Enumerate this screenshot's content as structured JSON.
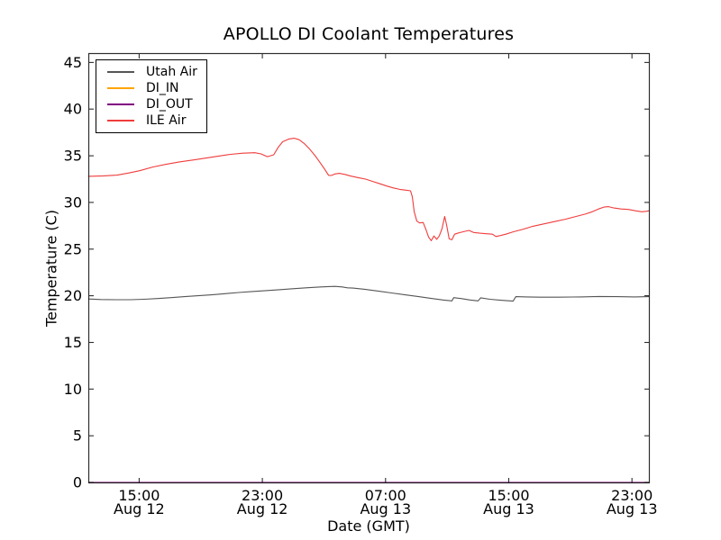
{
  "figure": {
    "background": "#ffffff",
    "axis_color": "#000000"
  },
  "chart_data": {
    "type": "line",
    "title": "APOLLO DI Coolant Temperatures",
    "xlabel": "Date (GMT)",
    "ylabel": "Temperature (C)",
    "x_axis_unit": "hours since Aug 12 00:00 GMT",
    "xlim_hours": [
      11.7,
      48.1
    ],
    "ylim": [
      0,
      46
    ],
    "y_ticks": [
      0,
      5,
      10,
      15,
      20,
      25,
      30,
      35,
      40,
      45
    ],
    "x_ticks": [
      {
        "hour": 15,
        "label_time": "15:00",
        "label_date": "Aug 12"
      },
      {
        "hour": 23,
        "label_time": "23:00",
        "label_date": "Aug 12"
      },
      {
        "hour": 31,
        "label_time": "07:00",
        "label_date": "Aug 13"
      },
      {
        "hour": 39,
        "label_time": "15:00",
        "label_date": "Aug 13"
      },
      {
        "hour": 47,
        "label_time": "23:00",
        "label_date": "Aug 13"
      }
    ],
    "grid": false,
    "legend": {
      "position": "upper left"
    },
    "series": [
      {
        "name": "Utah Air",
        "color": "#555555",
        "points": [
          [
            11.7,
            19.65
          ],
          [
            12.52,
            19.6
          ],
          [
            13.45,
            19.58
          ],
          [
            14.45,
            19.58
          ],
          [
            15.32,
            19.62
          ],
          [
            16.2,
            19.7
          ],
          [
            17.08,
            19.8
          ],
          [
            17.95,
            19.9
          ],
          [
            18.83,
            20.0
          ],
          [
            19.71,
            20.1
          ],
          [
            20.58,
            20.22
          ],
          [
            21.46,
            20.35
          ],
          [
            22.34,
            20.45
          ],
          [
            23.21,
            20.55
          ],
          [
            24.09,
            20.65
          ],
          [
            24.97,
            20.75
          ],
          [
            25.84,
            20.85
          ],
          [
            26.55,
            20.92
          ],
          [
            27.13,
            20.97
          ],
          [
            27.71,
            21.0
          ],
          [
            28.18,
            20.95
          ],
          [
            28.53,
            20.85
          ],
          [
            28.88,
            20.82
          ],
          [
            29.64,
            20.7
          ],
          [
            30.52,
            20.5
          ],
          [
            31.39,
            20.3
          ],
          [
            32.27,
            20.1
          ],
          [
            33.15,
            19.9
          ],
          [
            34.02,
            19.7
          ],
          [
            34.73,
            19.55
          ],
          [
            35.31,
            19.45
          ],
          [
            35.43,
            19.8
          ],
          [
            35.9,
            19.7
          ],
          [
            36.48,
            19.55
          ],
          [
            37.01,
            19.45
          ],
          [
            37.18,
            19.78
          ],
          [
            37.77,
            19.62
          ],
          [
            38.47,
            19.52
          ],
          [
            39.28,
            19.42
          ],
          [
            39.46,
            19.9
          ],
          [
            40.16,
            19.88
          ],
          [
            41.04,
            19.85
          ],
          [
            42.21,
            19.85
          ],
          [
            43.67,
            19.88
          ],
          [
            44.83,
            19.92
          ],
          [
            46.0,
            19.9
          ],
          [
            47.17,
            19.88
          ],
          [
            48.1,
            19.9
          ]
        ]
      },
      {
        "name": "DI_IN",
        "color": "#ffa500",
        "points": [
          [
            11.7,
            0.0
          ],
          [
            48.1,
            0.0
          ]
        ]
      },
      {
        "name": "DI_OUT",
        "color": "#800080",
        "points": [
          [
            11.7,
            0.0
          ],
          [
            48.1,
            0.0
          ]
        ]
      },
      {
        "name": "ILE Air",
        "color": "#f03c3c",
        "points": [
          [
            11.7,
            32.8
          ],
          [
            12.69,
            32.85
          ],
          [
            13.57,
            32.92
          ],
          [
            14.33,
            33.15
          ],
          [
            15.03,
            33.4
          ],
          [
            15.91,
            33.8
          ],
          [
            16.78,
            34.1
          ],
          [
            17.66,
            34.35
          ],
          [
            18.54,
            34.55
          ],
          [
            19.3,
            34.75
          ],
          [
            20.12,
            34.95
          ],
          [
            20.93,
            35.15
          ],
          [
            21.75,
            35.28
          ],
          [
            22.51,
            35.32
          ],
          [
            22.92,
            35.2
          ],
          [
            23.33,
            34.9
          ],
          [
            23.74,
            35.1
          ],
          [
            24.03,
            35.9
          ],
          [
            24.32,
            36.5
          ],
          [
            24.73,
            36.8
          ],
          [
            25.08,
            36.88
          ],
          [
            25.38,
            36.72
          ],
          [
            25.73,
            36.3
          ],
          [
            26.08,
            35.7
          ],
          [
            26.43,
            35.0
          ],
          [
            26.78,
            34.2
          ],
          [
            27.07,
            33.5
          ],
          [
            27.3,
            32.9
          ],
          [
            27.48,
            32.88
          ],
          [
            27.71,
            33.05
          ],
          [
            28.0,
            33.12
          ],
          [
            28.36,
            33.0
          ],
          [
            28.76,
            32.82
          ],
          [
            29.23,
            32.65
          ],
          [
            29.7,
            32.5
          ],
          [
            30.17,
            32.25
          ],
          [
            30.64,
            32.0
          ],
          [
            31.1,
            31.75
          ],
          [
            31.51,
            31.55
          ],
          [
            31.92,
            31.4
          ],
          [
            32.27,
            31.32
          ],
          [
            32.62,
            31.25
          ],
          [
            32.74,
            30.6
          ],
          [
            32.86,
            29.0
          ],
          [
            33.03,
            28.0
          ],
          [
            33.21,
            27.8
          ],
          [
            33.44,
            27.85
          ],
          [
            33.62,
            27.1
          ],
          [
            33.79,
            26.3
          ],
          [
            33.97,
            25.9
          ],
          [
            34.14,
            26.4
          ],
          [
            34.32,
            26.05
          ],
          [
            34.49,
            26.4
          ],
          [
            34.67,
            27.2
          ],
          [
            34.84,
            28.5
          ],
          [
            34.96,
            27.6
          ],
          [
            35.13,
            26.1
          ],
          [
            35.31,
            26.0
          ],
          [
            35.48,
            26.6
          ],
          [
            35.78,
            26.75
          ],
          [
            36.13,
            26.9
          ],
          [
            36.42,
            27.0
          ],
          [
            36.71,
            26.78
          ],
          [
            37.12,
            26.7
          ],
          [
            37.53,
            26.65
          ],
          [
            37.94,
            26.6
          ],
          [
            38.17,
            26.35
          ],
          [
            38.46,
            26.45
          ],
          [
            38.81,
            26.6
          ],
          [
            39.28,
            26.85
          ],
          [
            39.87,
            27.1
          ],
          [
            40.57,
            27.45
          ],
          [
            41.27,
            27.7
          ],
          [
            41.97,
            27.95
          ],
          [
            42.67,
            28.2
          ],
          [
            43.37,
            28.5
          ],
          [
            43.96,
            28.75
          ],
          [
            44.42,
            29.0
          ],
          [
            44.83,
            29.3
          ],
          [
            45.18,
            29.5
          ],
          [
            45.48,
            29.55
          ],
          [
            45.83,
            29.4
          ],
          [
            46.3,
            29.3
          ],
          [
            46.76,
            29.25
          ],
          [
            47.23,
            29.1
          ],
          [
            47.64,
            29.0
          ],
          [
            47.93,
            29.05
          ],
          [
            48.1,
            29.1
          ]
        ]
      }
    ]
  }
}
